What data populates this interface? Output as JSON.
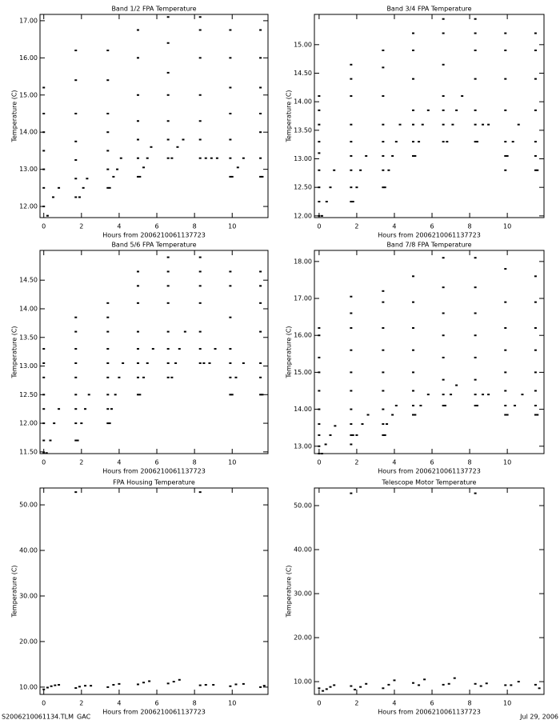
{
  "chart_data": [
    {
      "type": "scatter",
      "title": "Band 1/2 FPA Temperature",
      "x_label": "Hours from 2006210061137723",
      "y_label": "Temperature (C)",
      "color": "#000000",
      "xlim": [
        -0.2,
        11.9
      ],
      "xticks": [
        0,
        2,
        4,
        6,
        8,
        10
      ],
      "ylim": [
        11.7,
        17.17
      ],
      "yticks": [
        {
          "value": 12,
          "label": "12.00"
        },
        {
          "value": 13,
          "label": "13.00"
        },
        {
          "value": 14,
          "label": "14.00"
        },
        {
          "value": 15,
          "label": "15.00"
        },
        {
          "value": 16,
          "label": "16.00"
        },
        {
          "value": 17,
          "label": "17.00"
        }
      ],
      "x": [
        0,
        0,
        0,
        0,
        0,
        0,
        0,
        0.2,
        0.5,
        0.8,
        1.7,
        1.7,
        1.7,
        1.7,
        1.7,
        1.7,
        1.7,
        1.9,
        2.1,
        2.3,
        3.4,
        3.4,
        3.4,
        3.4,
        3.4,
        3.4,
        3.4,
        3.5,
        3.7,
        3.9,
        4.1,
        5,
        5,
        5,
        5,
        5,
        5,
        5,
        5.1,
        5.3,
        5.5,
        5.7,
        6.6,
        6.6,
        6.6,
        6.6,
        6.6,
        6.6,
        6.6,
        6.8,
        7.1,
        7.4,
        8.3,
        8.3,
        8.3,
        8.3,
        8.3,
        8.3,
        8.3,
        8.6,
        8.9,
        9.2,
        9.9,
        9.9,
        9.9,
        9.9,
        9.9,
        9.9,
        9.9,
        10,
        10.3,
        10.6,
        11.5,
        11.5,
        11.5,
        11.5,
        11.5,
        11.5,
        11.5,
        11.6
      ],
      "y": [
        12,
        12.5,
        13,
        13.5,
        14,
        14.5,
        15.2,
        11.75,
        12.25,
        12.5,
        12.25,
        12.75,
        13.25,
        13.75,
        14.5,
        15.4,
        16.2,
        12.25,
        12.5,
        12.75,
        12.5,
        13,
        13.5,
        14,
        14.5,
        15.4,
        16.2,
        12.5,
        12.8,
        13,
        13.3,
        12.8,
        13.3,
        13.8,
        14.3,
        15,
        16,
        16.75,
        12.8,
        13.05,
        13.3,
        13.6,
        13.3,
        13.8,
        14.3,
        15,
        15.6,
        16.4,
        17.1,
        13.3,
        13.6,
        13.8,
        13.3,
        13.8,
        14.3,
        15,
        16,
        16.75,
        17.1,
        13.3,
        13.3,
        13.3,
        12.8,
        13.3,
        13.8,
        14.5,
        15.2,
        16,
        16.75,
        12.8,
        13.05,
        13.3,
        12.8,
        13.3,
        14,
        14.5,
        15.2,
        16,
        16.75,
        12.8
      ]
    },
    {
      "type": "scatter",
      "title": "Band 3/4 FPA Temperature",
      "x_label": "Hours from 2006210061137723",
      "y_label": "Temperature (C)",
      "color": "#000000",
      "xlim": [
        -0.25,
        11.95
      ],
      "xticks": [
        0,
        2,
        4,
        6,
        8,
        10
      ],
      "ylim": [
        11.97,
        15.53
      ],
      "yticks": [
        {
          "value": 12,
          "label": "12.00"
        },
        {
          "value": 12.5,
          "label": "12.50"
        },
        {
          "value": 13,
          "label": "13.00"
        },
        {
          "value": 13.5,
          "label": "13.50"
        },
        {
          "value": 14,
          "label": "14.00"
        },
        {
          "value": 14.5,
          "label": "14.50"
        },
        {
          "value": 15,
          "label": "15.00"
        }
      ],
      "x": [
        0,
        0,
        0,
        0,
        0,
        0,
        0,
        0,
        0,
        0.15,
        0.4,
        0.6,
        0.8,
        1.7,
        1.7,
        1.7,
        1.7,
        1.7,
        1.7,
        1.7,
        1.7,
        1.7,
        1.8,
        2,
        2.2,
        2.5,
        3.4,
        3.4,
        3.4,
        3.4,
        3.4,
        3.4,
        3.4,
        3.4,
        3.5,
        3.7,
        3.9,
        4.1,
        4.3,
        5,
        5,
        5,
        5,
        5,
        5,
        5,
        5.1,
        5.3,
        5.5,
        5.8,
        6.6,
        6.6,
        6.6,
        6.6,
        6.6,
        6.6,
        6.6,
        6.8,
        7.1,
        7.3,
        7.6,
        8.3,
        8.3,
        8.3,
        8.3,
        8.3,
        8.3,
        8.3,
        8.4,
        8.7,
        9,
        9.9,
        9.9,
        9.9,
        9.9,
        9.9,
        9.9,
        9.9,
        10,
        10.3,
        10.6,
        11.5,
        11.5,
        11.5,
        11.5,
        11.5,
        11.5,
        11.5,
        11.6
      ],
      "y": [
        12,
        12.25,
        12.5,
        12.8,
        13.1,
        13.3,
        13.6,
        13.85,
        14.1,
        12,
        12.25,
        12.5,
        12.8,
        12.25,
        12.5,
        12.8,
        13.05,
        13.3,
        13.6,
        14.1,
        14.4,
        14.65,
        12.25,
        12.5,
        12.8,
        13.05,
        12.5,
        12.8,
        13.05,
        13.3,
        13.6,
        14.1,
        14.6,
        14.9,
        12.5,
        12.8,
        13.05,
        13.3,
        13.6,
        13.05,
        13.3,
        13.6,
        13.85,
        14.4,
        14.9,
        15.2,
        13.05,
        13.3,
        13.6,
        13.85,
        13.3,
        13.6,
        13.85,
        14.1,
        14.65,
        15.2,
        15.45,
        13.3,
        13.6,
        13.85,
        14.1,
        13.3,
        13.6,
        13.85,
        14.4,
        14.9,
        15.2,
        15.45,
        13.3,
        13.6,
        13.6,
        12.8,
        13.05,
        13.3,
        13.85,
        14.4,
        14.9,
        15.2,
        13.05,
        13.3,
        13.6,
        12.8,
        13.05,
        13.3,
        13.85,
        14.4,
        14.9,
        15.2,
        12.8
      ]
    },
    {
      "type": "scatter",
      "title": "Band 5/6 FPA Temperature",
      "x_label": "Hours from 2006210061137723",
      "y_label": "Temperature (C)",
      "color": "#000000",
      "xlim": [
        -0.2,
        11.9
      ],
      "xticks": [
        0,
        2,
        4,
        6,
        8,
        10
      ],
      "ylim": [
        11.47,
        15.02
      ],
      "yticks": [
        {
          "value": 11.5,
          "label": "11.50"
        },
        {
          "value": 12,
          "label": "12.00"
        },
        {
          "value": 12.5,
          "label": "12.50"
        },
        {
          "value": 13,
          "label": "13.00"
        },
        {
          "value": 13.5,
          "label": "13.50"
        },
        {
          "value": 14,
          "label": "14.00"
        },
        {
          "value": 14.5,
          "label": "14.50"
        }
      ],
      "x": [
        0,
        0,
        0,
        0,
        0,
        0,
        0,
        0,
        0.15,
        0.35,
        0.55,
        0.8,
        1.7,
        1.7,
        1.7,
        1.7,
        1.7,
        1.7,
        1.7,
        1.7,
        1.7,
        1.8,
        2,
        2.2,
        2.4,
        3.4,
        3.4,
        3.4,
        3.4,
        3.4,
        3.4,
        3.4,
        3.4,
        3.4,
        3.5,
        3.6,
        3.8,
        4,
        4.2,
        5,
        5,
        5,
        5,
        5,
        5,
        5,
        5,
        5.1,
        5.3,
        5.5,
        5.8,
        6.6,
        6.6,
        6.6,
        6.6,
        6.6,
        6.6,
        6.6,
        6.6,
        6.8,
        7,
        7.2,
        7.5,
        8.3,
        8.3,
        8.3,
        8.3,
        8.3,
        8.3,
        8.3,
        8.5,
        8.8,
        9.1,
        9.9,
        9.9,
        9.9,
        9.9,
        9.9,
        9.9,
        9.9,
        10,
        10.2,
        10.6,
        11.5,
        11.5,
        11.5,
        11.5,
        11.5,
        11.5,
        11.5,
        11.6
      ],
      "y": [
        11.48,
        11.7,
        12,
        12.25,
        12.5,
        12.8,
        13.05,
        13.3,
        11.48,
        11.7,
        12,
        12.25,
        11.7,
        12,
        12.25,
        12.5,
        12.8,
        13.05,
        13.3,
        13.6,
        13.85,
        11.7,
        12,
        12.25,
        12.5,
        12,
        12.25,
        12.5,
        12.8,
        13.05,
        13.3,
        13.6,
        13.85,
        14.1,
        12,
        12.25,
        12.5,
        12.8,
        13.05,
        12.5,
        12.8,
        13.05,
        13.3,
        13.6,
        14.1,
        14.4,
        14.65,
        12.5,
        12.8,
        13.05,
        13.3,
        12.8,
        13.05,
        13.3,
        13.6,
        14.1,
        14.4,
        14.65,
        14.9,
        12.8,
        13.05,
        13.3,
        13.6,
        13.05,
        13.3,
        13.6,
        14.1,
        14.4,
        14.65,
        14.9,
        13.05,
        13.05,
        13.3,
        12.5,
        12.8,
        13.05,
        13.3,
        13.85,
        14.4,
        14.65,
        12.5,
        12.8,
        13.05,
        12.5,
        12.8,
        13.05,
        13.6,
        14.1,
        14.4,
        14.65,
        12.5
      ]
    },
    {
      "type": "scatter",
      "title": "Band 7/8 FPA Temperature",
      "x_label": "Hours from 2006210061137723",
      "y_label": "Temperature (C)",
      "color": "#000000",
      "xlim": [
        -0.25,
        11.95
      ],
      "xticks": [
        0,
        2,
        4,
        6,
        8,
        10
      ],
      "ylim": [
        12.8,
        18.3
      ],
      "yticks": [
        {
          "value": 13,
          "label": "13.00"
        },
        {
          "value": 14,
          "label": "14.00"
        },
        {
          "value": 15,
          "label": "15.00"
        },
        {
          "value": 16,
          "label": "16.00"
        },
        {
          "value": 17,
          "label": "17.00"
        },
        {
          "value": 18,
          "label": "18.00"
        }
      ],
      "x": [
        0,
        0,
        0,
        0,
        0,
        0,
        0,
        0,
        0,
        0,
        0.15,
        0.35,
        0.6,
        0.85,
        1.7,
        1.7,
        1.7,
        1.7,
        1.7,
        1.7,
        1.7,
        1.7,
        1.7,
        1.7,
        1.8,
        2,
        2.3,
        2.6,
        3.4,
        3.4,
        3.4,
        3.4,
        3.4,
        3.4,
        3.4,
        3.4,
        3.4,
        3.5,
        3.6,
        3.9,
        4.1,
        5,
        5,
        5,
        5,
        5,
        5,
        5,
        5,
        5.1,
        5.4,
        5.8,
        6.6,
        6.6,
        6.6,
        6.6,
        6.6,
        6.6,
        6.6,
        6.6,
        6.7,
        7,
        7.3,
        8.3,
        8.3,
        8.3,
        8.3,
        8.3,
        8.3,
        8.3,
        8.3,
        8.4,
        8.7,
        9,
        9.9,
        9.9,
        9.9,
        9.9,
        9.9,
        9.9,
        9.9,
        9.9,
        10,
        10.4,
        10.8,
        11.5,
        11.5,
        11.5,
        11.5,
        11.5,
        11.5,
        11.5,
        11.5,
        11.6
      ],
      "y": [
        12.8,
        13,
        13.3,
        13.6,
        14,
        14.5,
        15,
        15.4,
        16,
        16.2,
        12.8,
        13.05,
        13.3,
        13.55,
        13.05,
        13.3,
        13.6,
        14,
        14.5,
        15,
        15.6,
        16.2,
        16.6,
        17.05,
        13.3,
        13.3,
        13.6,
        13.85,
        13.3,
        13.6,
        14,
        14.5,
        15,
        15.6,
        16.2,
        16.9,
        17.2,
        13.3,
        13.6,
        13.85,
        14.1,
        13.85,
        14.1,
        14.5,
        15,
        15.6,
        16.2,
        16.9,
        17.6,
        13.85,
        14.1,
        14.4,
        14.1,
        14.4,
        14.8,
        15.4,
        16,
        16.6,
        17.3,
        18.1,
        14.1,
        14.4,
        14.65,
        14.1,
        14.4,
        14.8,
        15.4,
        16,
        16.6,
        17.3,
        18.1,
        14.1,
        14.4,
        14.4,
        13.85,
        14.1,
        14.5,
        15,
        15.6,
        16.2,
        16.9,
        17.8,
        13.85,
        14.1,
        14.4,
        13.85,
        14.1,
        14.5,
        15,
        15.6,
        16.2,
        16.9,
        17.6,
        13.85
      ]
    },
    {
      "type": "scatter",
      "title": "FPA Housing Temperature",
      "x_label": "Hours from 2006210061137723",
      "y_label": "Temperature (C)",
      "color": "#000000",
      "xlim": [
        -0.2,
        11.9
      ],
      "xticks": [
        0,
        2,
        4,
        6,
        8,
        10
      ],
      "ylim": [
        8.4,
        53.7
      ],
      "yticks": [
        {
          "value": 10,
          "label": "10.00"
        },
        {
          "value": 20,
          "label": "20.00"
        },
        {
          "value": 30,
          "label": "30.00"
        },
        {
          "value": 40,
          "label": "40.00"
        },
        {
          "value": 50,
          "label": "50.00"
        }
      ],
      "x": [
        0,
        0.2,
        0.4,
        0.6,
        0.8,
        1.7,
        1.9,
        2.2,
        2.5,
        3.4,
        3.7,
        4,
        5,
        5.3,
        5.6,
        6.6,
        6.9,
        7.2,
        8.3,
        8.6,
        9,
        9.9,
        10.2,
        10.6,
        11.5,
        11.7,
        1.7,
        8.3
      ],
      "y": [
        9.5,
        9.9,
        10.2,
        10.4,
        10.5,
        9.8,
        10.1,
        10.3,
        10.3,
        10,
        10.5,
        10.7,
        10.6,
        11,
        11.3,
        10.8,
        11.2,
        11.6,
        10.4,
        10.5,
        10.5,
        10.2,
        10.6,
        10.7,
        10,
        10.3,
        52.8,
        52.8
      ]
    },
    {
      "type": "scatter",
      "title": "Telescope Motor Temperature",
      "x_label": "Hours from 2006210061137723",
      "y_label": "Temperature (C)",
      "color": "#000000",
      "xlim": [
        -0.25,
        11.95
      ],
      "xticks": [
        0,
        2,
        4,
        6,
        8,
        10
      ],
      "ylim": [
        7.1,
        54
      ],
      "yticks": [
        {
          "value": 10,
          "label": "10.00"
        },
        {
          "value": 20,
          "label": "20.00"
        },
        {
          "value": 30,
          "label": "30.00"
        },
        {
          "value": 40,
          "label": "40.00"
        },
        {
          "value": 50,
          "label": "50.00"
        }
      ],
      "x": [
        0,
        0.2,
        0.4,
        0.6,
        0.8,
        1.7,
        1.9,
        2.2,
        2.5,
        3.4,
        3.7,
        4,
        5,
        5.3,
        5.6,
        6.6,
        6.9,
        7.2,
        8.3,
        8.6,
        8.9,
        9.9,
        10.2,
        10.6,
        11.5,
        11.7,
        1.7,
        8.3
      ],
      "y": [
        8.5,
        7.9,
        8.3,
        8.8,
        9.2,
        9,
        8.2,
        8.8,
        9.5,
        8.5,
        9.3,
        10.3,
        9.7,
        9.2,
        10.5,
        9.3,
        9.5,
        10.8,
        9.5,
        9,
        9.6,
        9.2,
        9.2,
        10,
        9.3,
        8.5,
        52.8,
        52.8
      ]
    }
  ],
  "footer": {
    "left": "S2006210061134.TLM_GAC",
    "right": "Jul 29, 2006"
  }
}
